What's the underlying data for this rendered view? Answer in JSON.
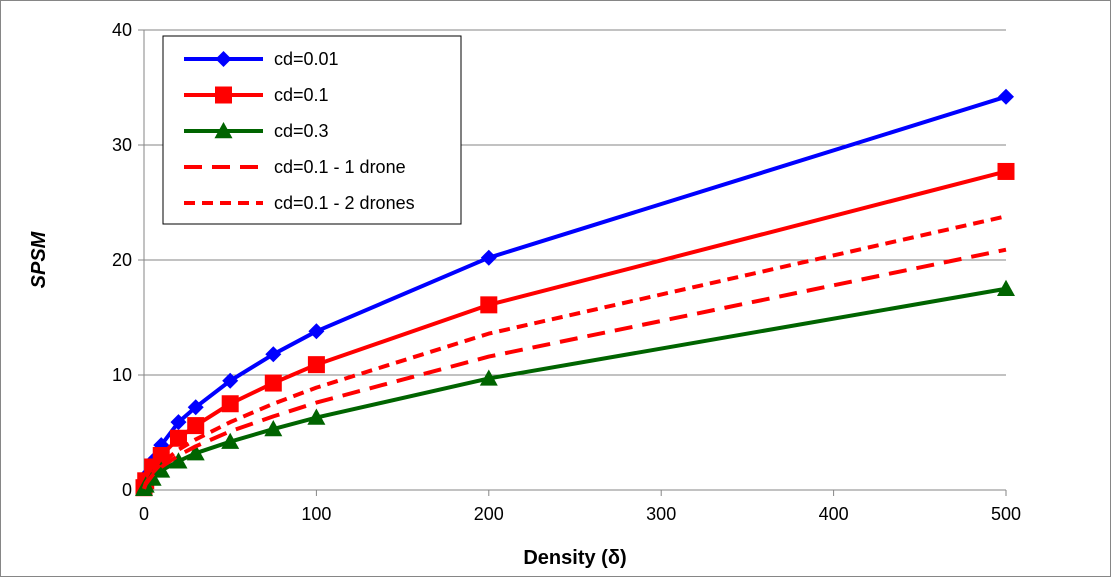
{
  "chart_data": {
    "type": "line",
    "title": "",
    "xlabel": "Density (δ)",
    "ylabel": "SPSM",
    "xlim": [
      0,
      500
    ],
    "ylim": [
      0,
      40
    ],
    "x_ticks": [
      0,
      100,
      200,
      300,
      400,
      500
    ],
    "y_ticks": [
      0,
      10,
      20,
      30,
      40
    ],
    "grid": "horizontal",
    "legend_position": "top-left",
    "series": [
      {
        "name": "cd=0.01",
        "color": "#0000ff",
        "line": "solid",
        "marker": "diamond",
        "x": [
          0,
          1,
          5,
          10,
          20,
          30,
          50,
          75,
          100,
          200,
          500
        ],
        "y": [
          0.3,
          1.2,
          2.5,
          3.9,
          5.9,
          7.2,
          9.5,
          11.8,
          13.8,
          20.2,
          34.2
        ]
      },
      {
        "name": "cd=0.1",
        "color": "#ff0000",
        "line": "solid",
        "marker": "square",
        "x": [
          0,
          1,
          5,
          10,
          20,
          30,
          50,
          75,
          100,
          200,
          500
        ],
        "y": [
          0.2,
          0.8,
          2.0,
          3.0,
          4.5,
          5.6,
          7.5,
          9.3,
          10.9,
          16.1,
          27.7
        ]
      },
      {
        "name": "cd=0.3",
        "color": "#006400",
        "line": "solid",
        "marker": "triangle",
        "x": [
          0,
          1,
          5,
          10,
          20,
          30,
          50,
          75,
          100,
          200,
          500
        ],
        "y": [
          0.1,
          0.4,
          1.0,
          1.7,
          2.5,
          3.2,
          4.2,
          5.3,
          6.3,
          9.7,
          17.5
        ]
      },
      {
        "name": "cd=0.1 - 1 drone",
        "color": "#ff0000",
        "line": "dashed-long",
        "marker": "none",
        "x": [
          0,
          1,
          5,
          10,
          20,
          30,
          50,
          75,
          100,
          200,
          500
        ],
        "y": [
          0.1,
          0.5,
          1.3,
          2.0,
          3.0,
          3.8,
          5.1,
          6.4,
          7.6,
          11.6,
          20.9
        ]
      },
      {
        "name": "cd=0.1 - 2 drones",
        "color": "#ff0000",
        "line": "dashed-short",
        "marker": "none",
        "x": [
          0,
          1,
          5,
          10,
          20,
          30,
          50,
          75,
          100,
          200,
          500
        ],
        "y": [
          0.1,
          0.6,
          1.5,
          2.3,
          3.5,
          4.4,
          5.9,
          7.5,
          8.9,
          13.6,
          23.8
        ]
      }
    ]
  }
}
